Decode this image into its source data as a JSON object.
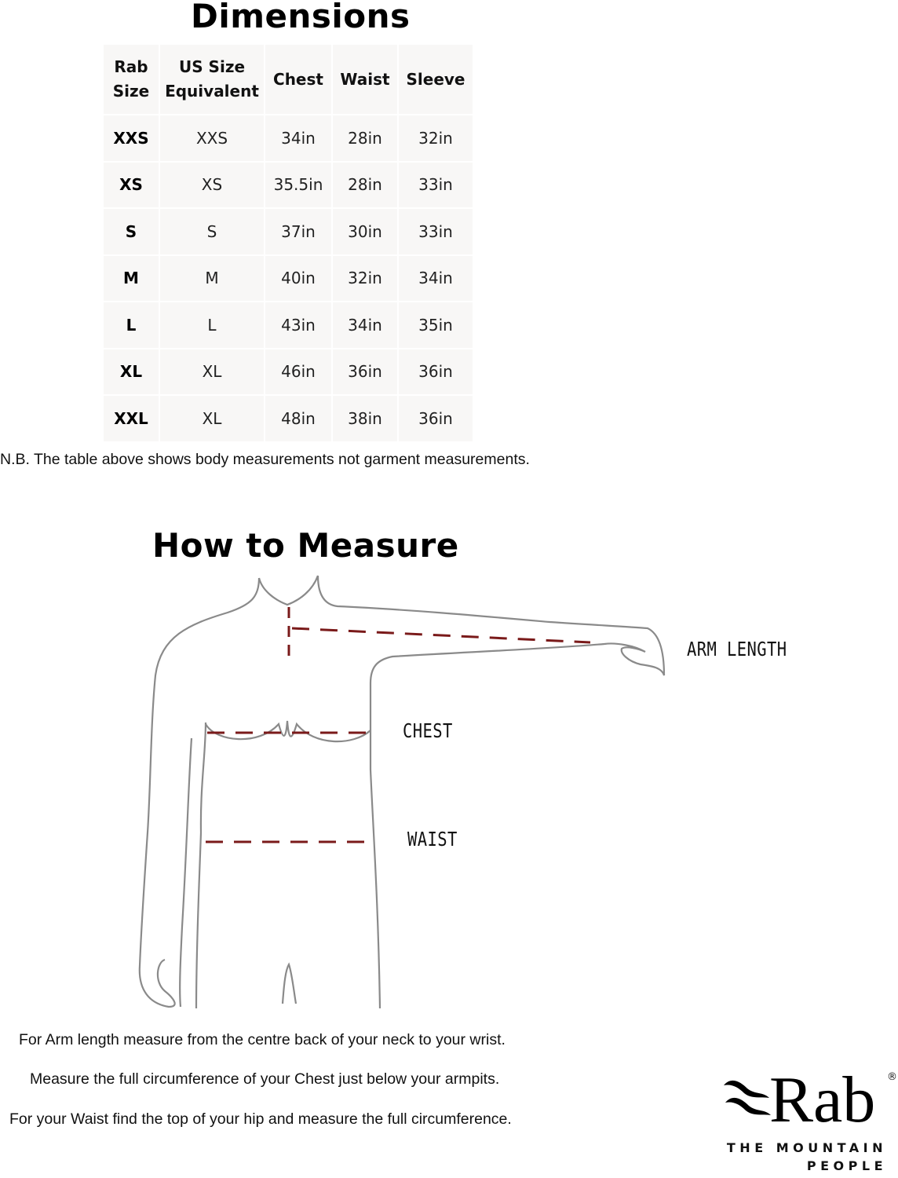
{
  "dimensions": {
    "title": "Dimensions",
    "headers": [
      "Rab Size",
      "US Size Equivalent",
      "Chest",
      "Waist",
      "Sleeve"
    ],
    "rows": [
      [
        "XXS",
        "XXS",
        "34in",
        "28in",
        "32in"
      ],
      [
        "XS",
        "XS",
        "35.5in",
        "28in",
        "33in"
      ],
      [
        "S",
        "S",
        "37in",
        "30in",
        "33in"
      ],
      [
        "M",
        "M",
        "40in",
        "32in",
        "34in"
      ],
      [
        "L",
        "L",
        "43in",
        "34in",
        "35in"
      ],
      [
        "XL",
        "XL",
        "46in",
        "36in",
        "36in"
      ],
      [
        "XXL",
        "XL",
        "48in",
        "38in",
        "36in"
      ]
    ],
    "note": "N.B. The table above shows body measurements not garment measurements."
  },
  "measure": {
    "title": "How to Measure",
    "labels": {
      "arm": "ARM LENGTH",
      "chest": "CHEST",
      "waist": "WAIST"
    },
    "line_color": "#7a1a1a",
    "instructions": [
      "For Arm length measure from the centre back of your neck to your wrist.",
      "Measure the full circumference of your Chest just below your armpits.",
      "For your Waist find the top of your hip and measure the full circumference."
    ]
  },
  "logo": {
    "name": "Rab",
    "registered": "®",
    "tagline_1": "THE MOUNTAIN",
    "tagline_2": "PEOPLE"
  }
}
